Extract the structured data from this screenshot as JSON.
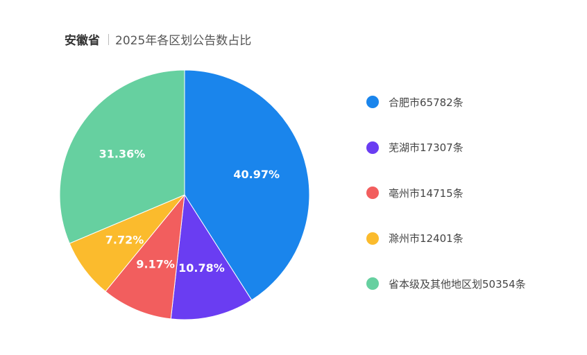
{
  "title": {
    "province": "安徽省",
    "subtitle": "2025年各区划公告数占比"
  },
  "colors": {
    "slice_label": "#ffffff"
  },
  "chart_data": {
    "type": "pie",
    "title": "2025年各区划公告数占比",
    "slices": [
      {
        "label": "合肥市65782条",
        "value": 65782,
        "percent_label": "40.97%",
        "color": "#1a85ec"
      },
      {
        "label": "芜湖市17307条",
        "value": 17307,
        "percent_label": "10.78%",
        "color": "#6a3df2"
      },
      {
        "label": "亳州市14715条",
        "value": 14715,
        "percent_label": "9.17%",
        "color": "#f25e5e"
      },
      {
        "label": "滁州市12401条",
        "value": 12401,
        "percent_label": "7.72%",
        "color": "#fbbb2d"
      },
      {
        "label": "省本级及其他地区划50354条",
        "value": 50354,
        "percent_label": "31.36%",
        "color": "#66d0a0"
      }
    ],
    "start_angle": "12 o'clock",
    "direction": "clockwise",
    "legend_position": "right"
  }
}
